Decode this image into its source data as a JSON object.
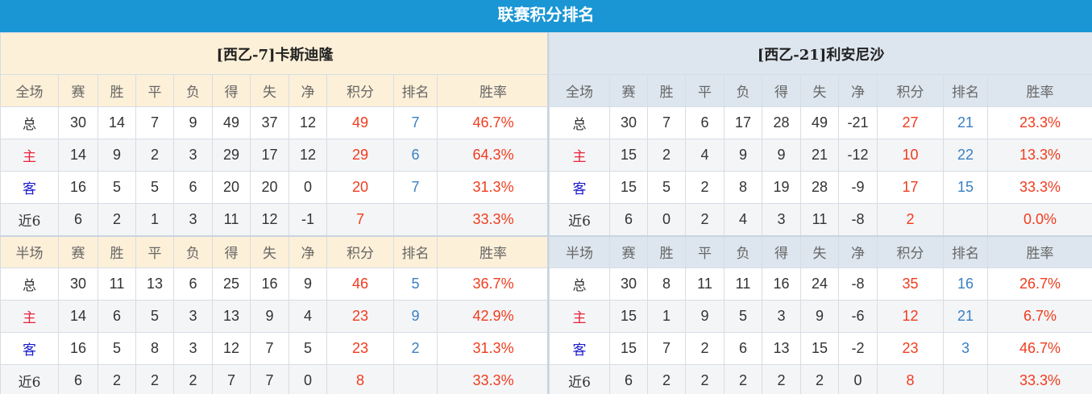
{
  "title": "联赛积分排名",
  "colors": {
    "title_bar": "#1a96d4",
    "points": "#f03c1e",
    "rank": "#3a7fc4",
    "home_label": "#e8233a",
    "away_label": "#1a1acc"
  },
  "teams": [
    {
      "name": "[西乙-7]卡斯迪隆",
      "full": {
        "header": [
          "全场",
          "赛",
          "胜",
          "平",
          "负",
          "得",
          "失",
          "净",
          "积分",
          "排名",
          "胜率"
        ],
        "rows": [
          [
            "总",
            "30",
            "14",
            "7",
            "9",
            "49",
            "37",
            "12",
            "49",
            "7",
            "46.7%"
          ],
          [
            "主",
            "14",
            "9",
            "2",
            "3",
            "29",
            "17",
            "12",
            "29",
            "6",
            "64.3%"
          ],
          [
            "客",
            "16",
            "5",
            "5",
            "6",
            "20",
            "20",
            "0",
            "20",
            "7",
            "31.3%"
          ],
          [
            "近6",
            "6",
            "2",
            "1",
            "3",
            "11",
            "12",
            "-1",
            "7",
            "",
            "33.3%"
          ]
        ]
      },
      "half": {
        "header": [
          "半场",
          "赛",
          "胜",
          "平",
          "负",
          "得",
          "失",
          "净",
          "积分",
          "排名",
          "胜率"
        ],
        "rows": [
          [
            "总",
            "30",
            "11",
            "13",
            "6",
            "25",
            "16",
            "9",
            "46",
            "5",
            "36.7%"
          ],
          [
            "主",
            "14",
            "6",
            "5",
            "3",
            "13",
            "9",
            "4",
            "23",
            "9",
            "42.9%"
          ],
          [
            "客",
            "16",
            "5",
            "8",
            "3",
            "12",
            "7",
            "5",
            "23",
            "2",
            "31.3%"
          ],
          [
            "近6",
            "6",
            "2",
            "2",
            "2",
            "7",
            "7",
            "0",
            "8",
            "",
            "33.3%"
          ]
        ]
      }
    },
    {
      "name": "[西乙-21]利安尼沙",
      "full": {
        "header": [
          "全场",
          "赛",
          "胜",
          "平",
          "负",
          "得",
          "失",
          "净",
          "积分",
          "排名",
          "胜率"
        ],
        "rows": [
          [
            "总",
            "30",
            "7",
            "6",
            "17",
            "28",
            "49",
            "-21",
            "27",
            "21",
            "23.3%"
          ],
          [
            "主",
            "15",
            "2",
            "4",
            "9",
            "9",
            "21",
            "-12",
            "10",
            "22",
            "13.3%"
          ],
          [
            "客",
            "15",
            "5",
            "2",
            "8",
            "19",
            "28",
            "-9",
            "17",
            "15",
            "33.3%"
          ],
          [
            "近6",
            "6",
            "0",
            "2",
            "4",
            "3",
            "11",
            "-8",
            "2",
            "",
            "0.0%"
          ]
        ]
      },
      "half": {
        "header": [
          "半场",
          "赛",
          "胜",
          "平",
          "负",
          "得",
          "失",
          "净",
          "积分",
          "排名",
          "胜率"
        ],
        "rows": [
          [
            "总",
            "30",
            "8",
            "11",
            "11",
            "16",
            "24",
            "-8",
            "35",
            "16",
            "26.7%"
          ],
          [
            "主",
            "15",
            "1",
            "9",
            "5",
            "3",
            "9",
            "-6",
            "12",
            "21",
            "6.7%"
          ],
          [
            "客",
            "15",
            "7",
            "2",
            "6",
            "13",
            "15",
            "-2",
            "23",
            "3",
            "46.7%"
          ],
          [
            "近6",
            "6",
            "2",
            "2",
            "2",
            "2",
            "2",
            "0",
            "8",
            "",
            "33.3%"
          ]
        ]
      }
    }
  ]
}
